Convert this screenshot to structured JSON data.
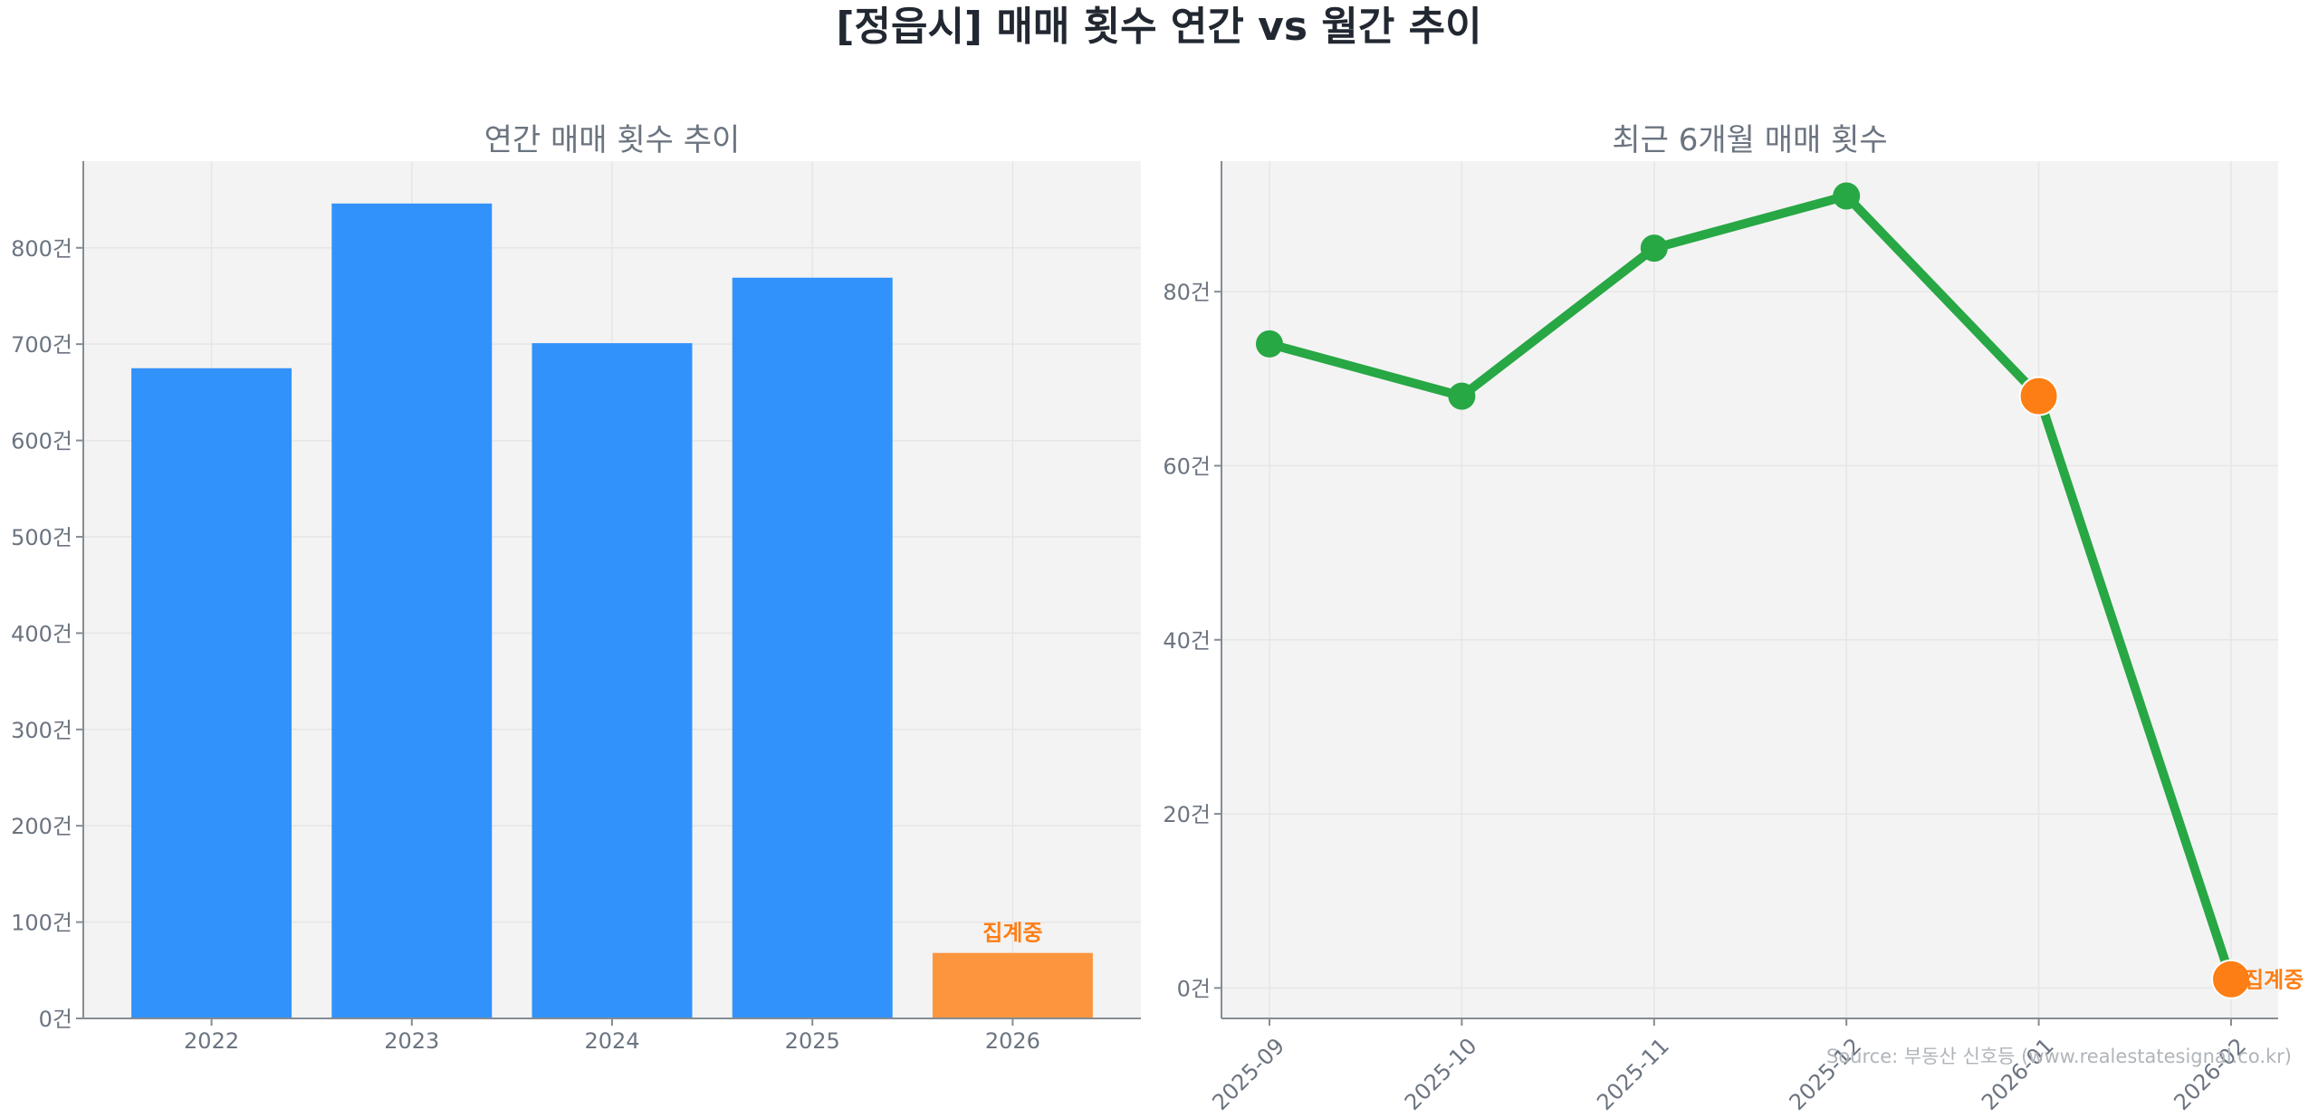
{
  "title": "[정읍시] 매매 횟수 연간 vs 월간 추이",
  "source": "Source: 부동산 신호등 (www.realestatesignal.co.kr)",
  "colors": {
    "bar": "#3192fb",
    "bar_partial": "#fb963f",
    "line": "#28a745",
    "highlight": "#fd7e14",
    "plot_bg": "#f3f3f3",
    "grid": "#e6e6e6",
    "axis": "#858c94",
    "tick_text": "#6b7480"
  },
  "chart_data": [
    {
      "type": "bar",
      "title": "연간 매매 횟수 추이",
      "xlabel": "",
      "ylabel": "",
      "categories": [
        "2022",
        "2023",
        "2024",
        "2025",
        "2026"
      ],
      "values": [
        675,
        846,
        701,
        769,
        68
      ],
      "partial_flags": [
        false,
        false,
        false,
        false,
        true
      ],
      "annotations": [
        {
          "category": "2026",
          "text": "집계중"
        }
      ],
      "ylim": [
        0,
        890
      ],
      "yticks": [
        0,
        100,
        200,
        300,
        400,
        500,
        600,
        700,
        800
      ],
      "ytick_labels": [
        "0건",
        "100건",
        "200건",
        "300건",
        "400건",
        "500건",
        "600건",
        "700건",
        "800건"
      ],
      "grid": true
    },
    {
      "type": "line",
      "title": "최근 6개월 매매 횟수",
      "xlabel": "",
      "ylabel": "",
      "categories": [
        "2025-09",
        "2025-10",
        "2025-11",
        "2025-12",
        "2026-01",
        "2026-02"
      ],
      "values": [
        74,
        68,
        85,
        91,
        68,
        1
      ],
      "highlight_flags": [
        false,
        false,
        false,
        false,
        true,
        true
      ],
      "annotations": [
        {
          "category": "2026-02",
          "text": "집계중"
        }
      ],
      "ylim": [
        -3.5,
        95
      ],
      "yticks": [
        0,
        20,
        40,
        60,
        80
      ],
      "ytick_labels": [
        "0건",
        "20건",
        "40건",
        "60건",
        "80건"
      ],
      "grid": true
    }
  ]
}
